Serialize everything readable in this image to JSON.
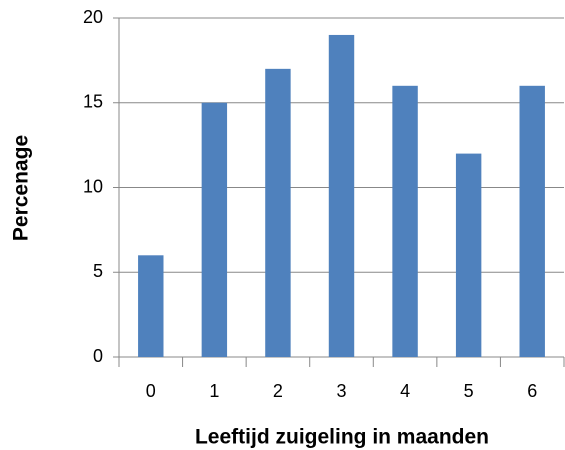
{
  "chart_data": {
    "type": "bar",
    "x_label": "Leeftijd zuigeling in maanden",
    "y_label": "Percenage",
    "categories": [
      "0",
      "1",
      "2",
      "3",
      "4",
      "5",
      "6"
    ],
    "values": [
      6,
      15,
      17,
      19,
      16,
      12,
      16
    ],
    "color": "#4f81bd",
    "ylim": [
      0,
      20
    ],
    "yticks": [
      0,
      5,
      10,
      15,
      20
    ],
    "grid": true
  }
}
